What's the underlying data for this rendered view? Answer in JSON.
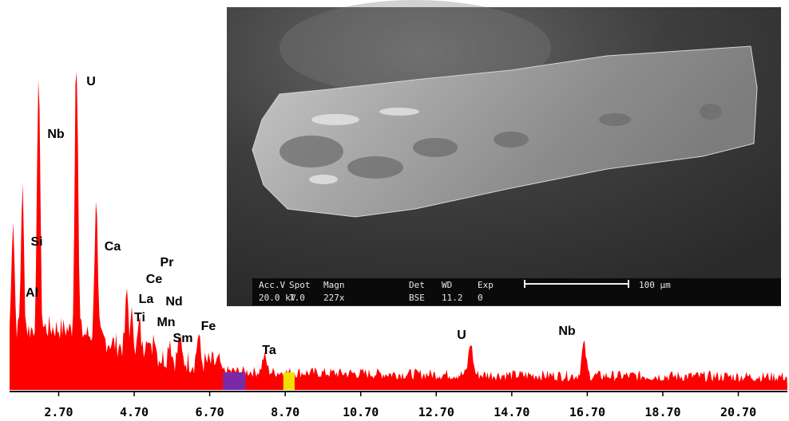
{
  "chart_data": {
    "type": "area",
    "title": "",
    "xlabel": "",
    "ylabel": "",
    "xlim": [
      1.4,
      22.0
    ],
    "x_ticks": [
      "2.70",
      "4.70",
      "6.70",
      "8.70",
      "10.70",
      "12.70",
      "14.70",
      "16.70",
      "18.70",
      "20.70"
    ],
    "fill_color": "#ff0000",
    "peaks": [
      {
        "label": "Al",
        "x": 1.49,
        "height": 0.37
      },
      {
        "label": "Si",
        "x": 1.74,
        "height": 0.45
      },
      {
        "label": "Nb",
        "x": 2.17,
        "height": 0.83
      },
      {
        "label": "U",
        "x": 3.17,
        "height": 1.0
      },
      {
        "label": "Ca",
        "x": 3.69,
        "height": 0.45
      },
      {
        "label": "Ti",
        "x": 4.51,
        "height": 0.18
      },
      {
        "label": "La",
        "x": 4.65,
        "height": 0.11
      },
      {
        "label": "Ce",
        "x": 4.84,
        "height": 0.09
      },
      {
        "label": "Pr",
        "x": 5.03,
        "height": 0.08
      },
      {
        "label": "Nd",
        "x": 5.23,
        "height": 0.08
      },
      {
        "label": "Mn",
        "x": 5.9,
        "height": 0.07
      },
      {
        "label": "Sm",
        "x": 5.64,
        "height": 0.07
      },
      {
        "label": "Fe",
        "x": 6.4,
        "height": 0.09
      },
      {
        "label": "Ta",
        "x": 8.15,
        "height": 0.05
      },
      {
        "label": "U",
        "x": 13.61,
        "height": 0.1
      },
      {
        "label": "Nb",
        "x": 16.61,
        "height": 0.1
      }
    ],
    "highlight_bands": [
      {
        "from": 7.05,
        "to": 7.65,
        "color": "#7a2aa8"
      },
      {
        "from": 8.65,
        "to": 8.95,
        "color": "#f0e000"
      }
    ]
  },
  "inset": {
    "caption_row1": [
      "Acc.V",
      "Spot",
      "Magn",
      "Det",
      "WD",
      "Exp"
    ],
    "caption_row2": [
      "20.0 kV",
      "7.0",
      "227x",
      "BSE",
      "11.2",
      "0"
    ],
    "scale_label": "100 μm"
  }
}
